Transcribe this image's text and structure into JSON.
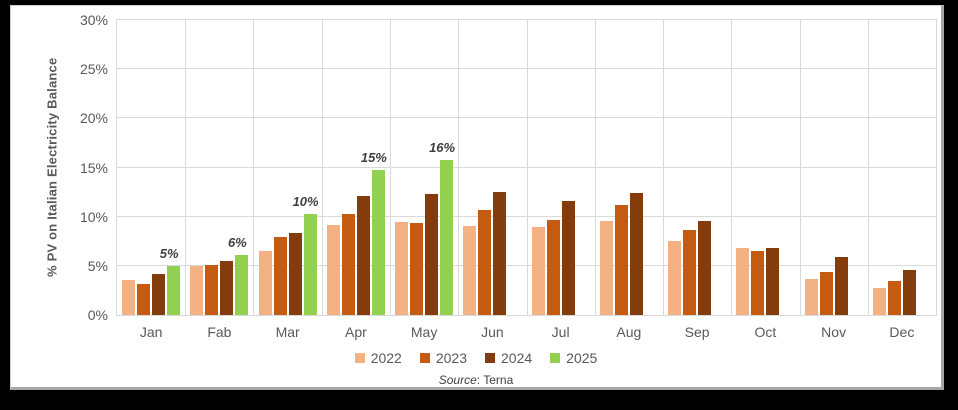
{
  "chart": {
    "y_axis_title": "% PV on Italian Electricity Balance",
    "source_label": "Source",
    "source_rest": ": Terna"
  },
  "chart_data": {
    "type": "bar",
    "title": "",
    "xlabel": "",
    "ylabel": "% PV on Italian Electricity Balance",
    "ylim": [
      0,
      30
    ],
    "y_ticks": [
      "0%",
      "5%",
      "10%",
      "15%",
      "20%",
      "25%",
      "30%"
    ],
    "grid": true,
    "legend_position": "bottom",
    "categories": [
      "Jan",
      "Fab",
      "Mar",
      "Apr",
      "May",
      "Jun",
      "Jul",
      "Aug",
      "Sep",
      "Oct",
      "Nov",
      "Dec"
    ],
    "series": [
      {
        "name": "2022",
        "color": "#F4B183",
        "values": [
          3.6,
          5.0,
          6.5,
          9.2,
          9.5,
          9.1,
          8.9,
          9.6,
          7.5,
          6.8,
          3.7,
          2.7
        ]
      },
      {
        "name": "2023",
        "color": "#C55A11",
        "values": [
          3.2,
          5.1,
          7.9,
          10.3,
          9.4,
          10.7,
          9.7,
          11.2,
          8.6,
          6.5,
          4.4,
          3.5
        ]
      },
      {
        "name": "2024",
        "color": "#843C0C",
        "values": [
          4.2,
          5.5,
          8.3,
          12.1,
          12.3,
          12.5,
          11.6,
          12.4,
          9.6,
          6.8,
          5.9,
          4.6
        ]
      },
      {
        "name": "2025",
        "color": "#92D050",
        "values": [
          5.0,
          6.1,
          10.3,
          14.7,
          15.8,
          null,
          null,
          null,
          null,
          null,
          null,
          null
        ],
        "data_labels": [
          "5%",
          "6%",
          "10%",
          "15%",
          "16%",
          null,
          null,
          null,
          null,
          null,
          null,
          null
        ]
      }
    ]
  }
}
